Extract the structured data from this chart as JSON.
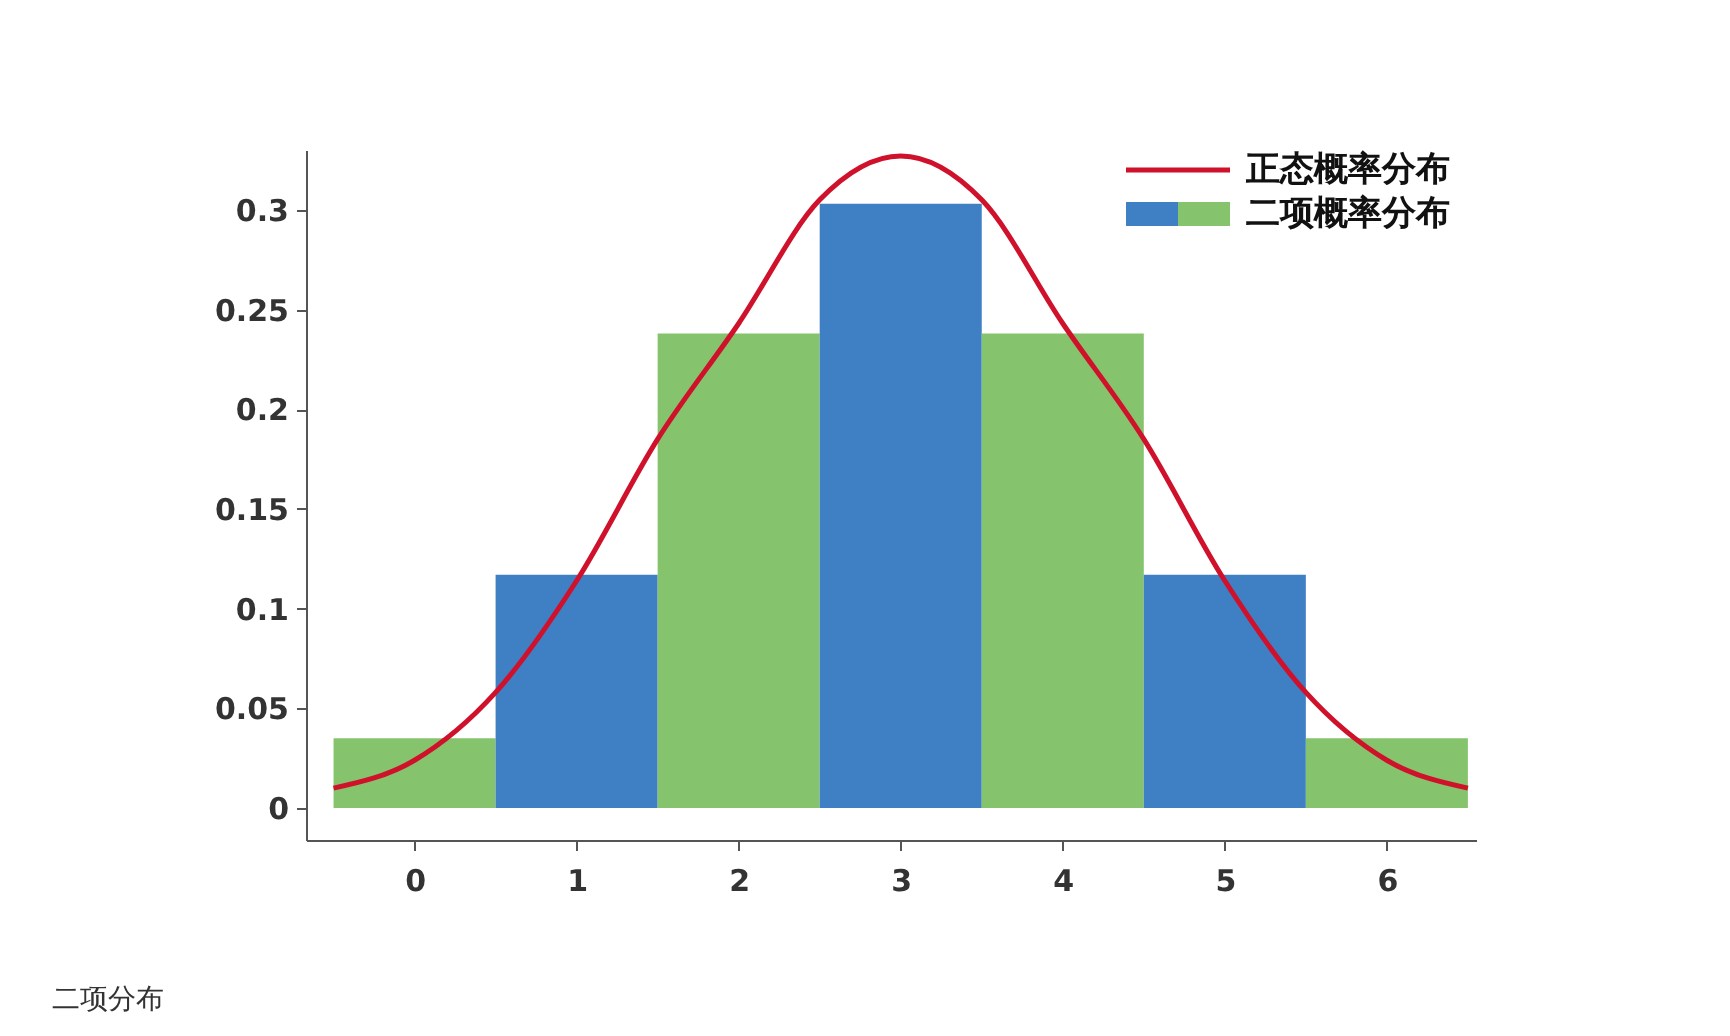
{
  "chart_data": {
    "type": "histogram",
    "xlim": [
      -0.67,
      6.55
    ],
    "xticks": [
      0,
      1,
      2,
      3,
      4,
      5,
      6
    ],
    "ylim": [
      -0.016,
      0.33
    ],
    "yticks": [
      0,
      0.05,
      0.1,
      0.15,
      0.2,
      0.25,
      0.3
    ],
    "grid": false,
    "legend": "top right",
    "series": [
      {
        "type": "histogram",
        "name": "二项概率分布",
        "bins": [
          -0.5,
          0.5,
          1.5,
          2.5,
          3.5,
          4.5,
          5.5,
          6.5
        ],
        "values": [
          0.035,
          0.117,
          0.238,
          0.303,
          0.238,
          0.117,
          0.035
        ],
        "colors": [
          "#85c46c",
          "#3f7fc4",
          "#85c46c",
          "#3f7fc4",
          "#85c46c",
          "#3f7fc4",
          "#85c46c"
        ]
      },
      {
        "type": "line",
        "name": "正态概率分布",
        "color": "#d0112b",
        "x": [
          -0.5,
          0,
          0.5,
          1,
          1.5,
          2,
          2.5,
          3,
          3.5,
          4,
          4.5,
          5,
          5.5,
          6,
          6.5
        ],
        "values": [
          0.01,
          0.024,
          0.058,
          0.114,
          0.185,
          0.243,
          0.305,
          0.327,
          0.305,
          0.243,
          0.185,
          0.114,
          0.058,
          0.024,
          0.01
        ]
      }
    ],
    "annotations": [
      "二项分布"
    ]
  }
}
